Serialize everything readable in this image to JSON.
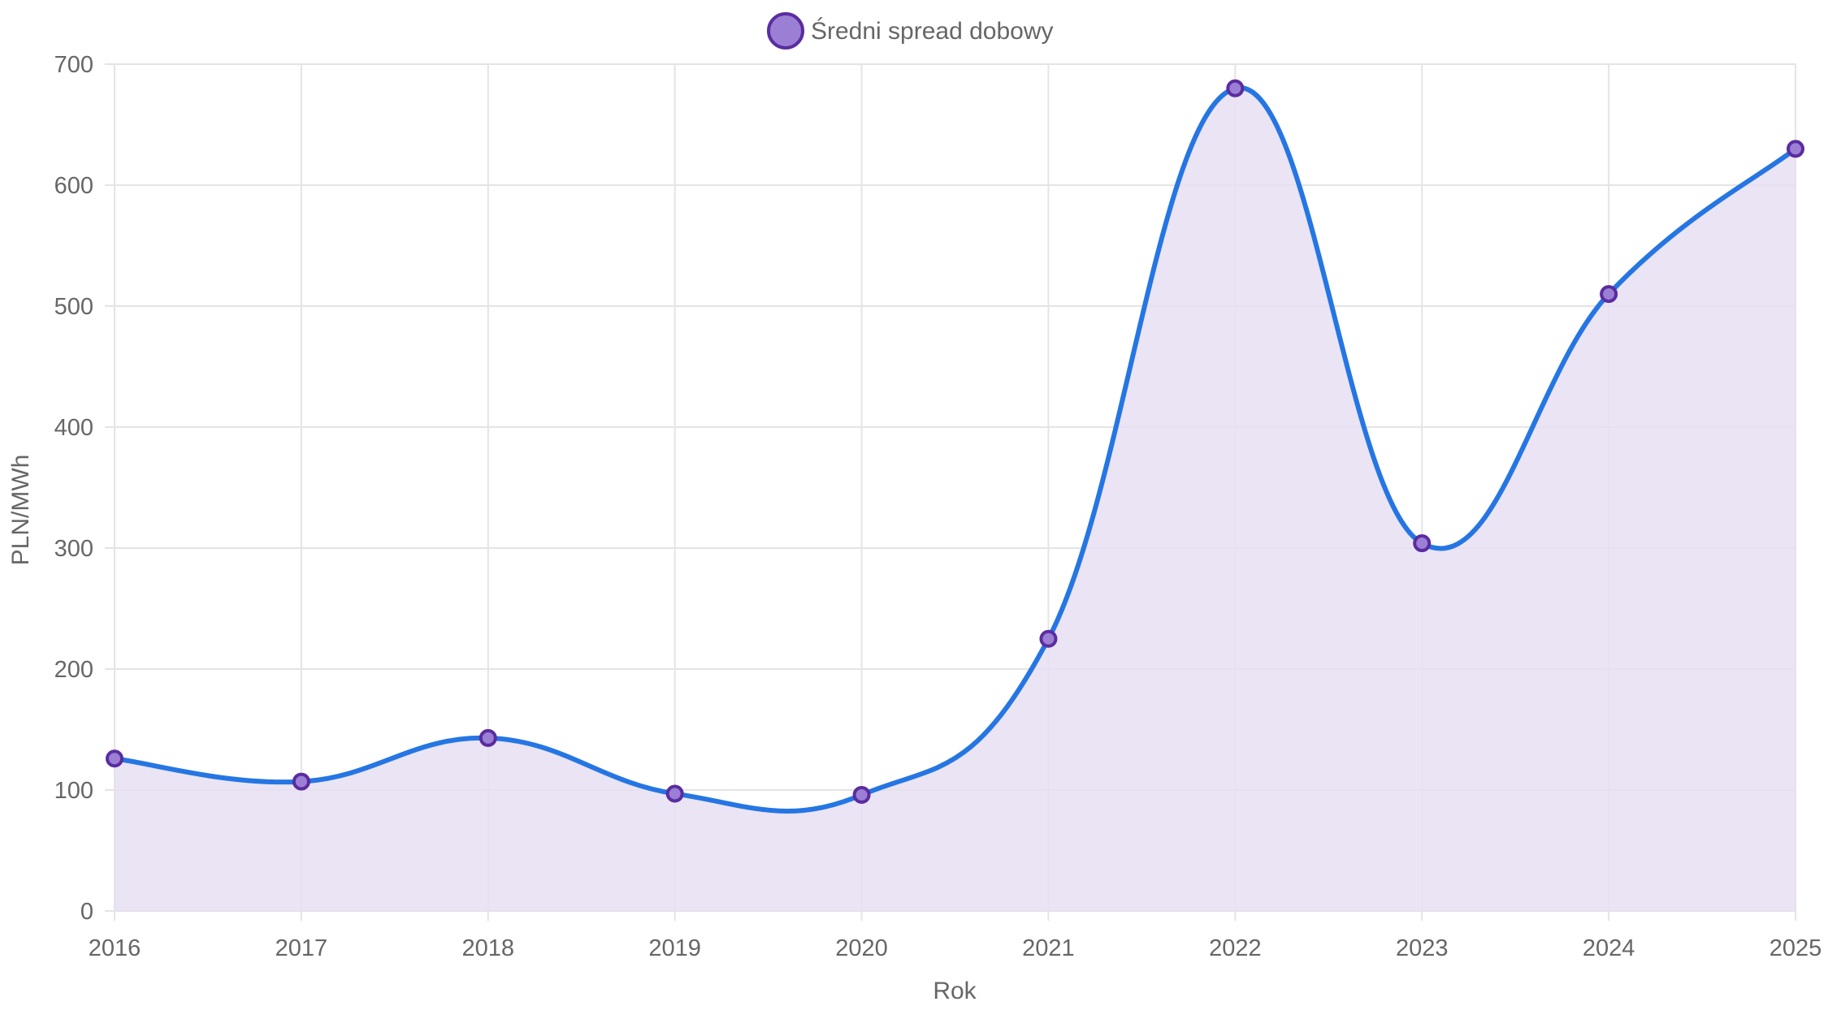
{
  "chart_data": {
    "type": "line",
    "title": "",
    "xlabel": "Rok",
    "ylabel": "PLN/MWh",
    "categories": [
      "2016",
      "2017",
      "2018",
      "2019",
      "2020",
      "2021",
      "2022",
      "2023",
      "2024",
      "2025"
    ],
    "series": [
      {
        "name": "Średni spread dobowy",
        "values": [
          126,
          107,
          143,
          97,
          96,
          225,
          680,
          304,
          510,
          630
        ],
        "line_color": "#2576e3",
        "fill_color": "#e6dff3",
        "point_color": "#9b7fd4",
        "point_border_color": "#5a2ca0"
      }
    ],
    "ylim": [
      0,
      700
    ],
    "yticks": [
      0,
      100,
      200,
      300,
      400,
      500,
      600,
      700
    ],
    "grid": true,
    "smooth": true,
    "filled": true,
    "legend_position": "top-center"
  }
}
